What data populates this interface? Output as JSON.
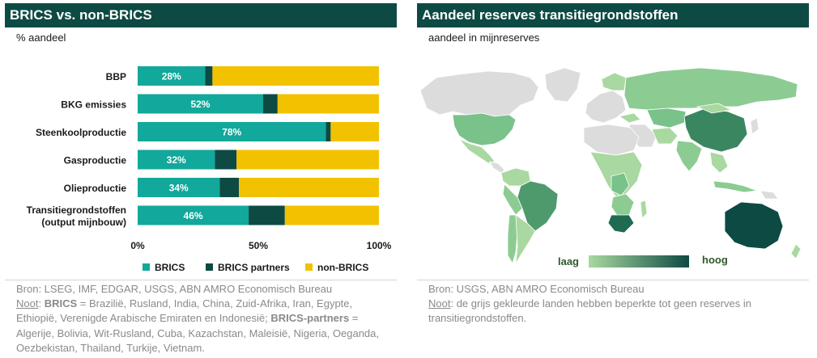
{
  "left": {
    "title": "BRICS vs. non-BRICS",
    "subtitle": "% aandeel",
    "source": "Bron: LSEG, IMF, EDGAR, USGS, ABN AMRO Economisch Bureau",
    "note_label": "Noot",
    "note_sep": ": ",
    "note_brics_label": "BRICS",
    "note_brics_text": " = Brazilië, Rusland, India, China, Zuid-Afrika, Iran, Egypte, Ethiopië, Verenigde Arabische Emiraten en Indonesië; ",
    "note_partners_label": "BRICS-partners",
    "note_partners_text": " = Algerije, Bolivia, Wit-Rusland, Cuba, Kazachstan, Maleisië, Nigeria, Oeganda, Oezbekistan, Thailand, Turkije, Vietnam."
  },
  "right": {
    "title": "Aandeel reserves transitiegrondstoffen",
    "subtitle": "aandeel in mijnreserves",
    "legend_low": "laag",
    "legend_high": "hoog",
    "source": "Bron: USGS, ABN AMRO Economisch Bureau",
    "note_label": "Noot",
    "note_text": ": de grijs gekleurde landen hebben beperkte tot geen reserves in transitiegrondstoffen."
  },
  "chart_data": [
    {
      "type": "bar",
      "orientation": "horizontal",
      "stacked": true,
      "categories": [
        "BBP",
        "BKG emissies",
        "Steenkoolproductie",
        "Gasproductie",
        "Olieproductie",
        "Transitiegrondstoffen\n(output mijnbouw)"
      ],
      "series": [
        {
          "name": "BRICS",
          "values": [
            28,
            52,
            78,
            32,
            34,
            46
          ],
          "color": "#12a89b"
        },
        {
          "name": "BRICS partners",
          "values": [
            3,
            6,
            2,
            9,
            8,
            15
          ],
          "color": "#0e4a44"
        },
        {
          "name": "non-BRICS",
          "values": [
            69,
            42,
            20,
            59,
            58,
            39
          ],
          "color": "#f2c200"
        }
      ],
      "data_labels": [
        "28%",
        "52%",
        "78%",
        "32%",
        "34%",
        "46%"
      ],
      "xlim": [
        0,
        100
      ],
      "xticks": [
        "0%",
        "50%",
        "100%"
      ],
      "legend_position": "bottom"
    }
  ]
}
